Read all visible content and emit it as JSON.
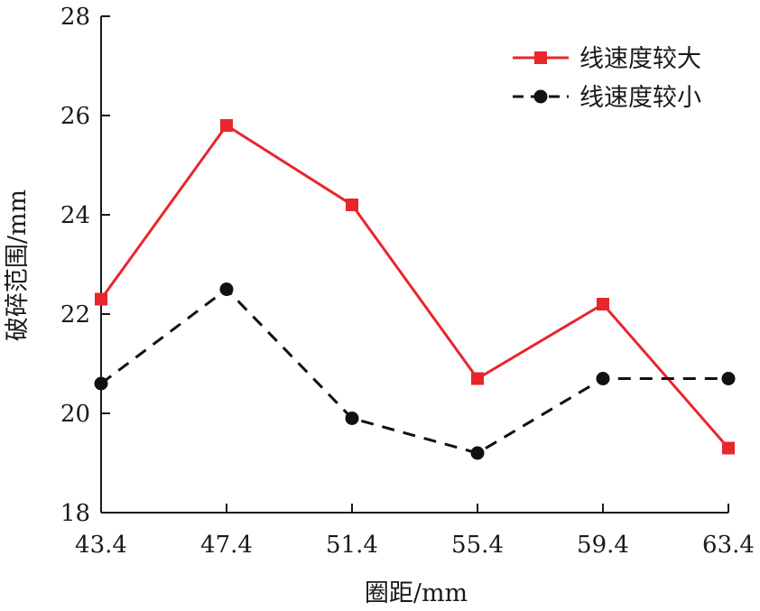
{
  "chart_data": {
    "type": "line",
    "title": "",
    "xlabel": "圈距/mm",
    "ylabel": "破碎范围/mm",
    "x": [
      43.4,
      47.4,
      51.4,
      55.4,
      59.4,
      63.4
    ],
    "x_tick_labels": [
      "43.4",
      "47.4",
      "51.4",
      "55.4",
      "59.4",
      "63.4"
    ],
    "y_ticks": [
      18,
      20,
      22,
      24,
      26,
      28
    ],
    "y_tick_labels": [
      "18",
      "20",
      "22",
      "24",
      "26",
      "28"
    ],
    "xlim": [
      43.4,
      63.4
    ],
    "ylim": [
      18,
      28
    ],
    "grid": false,
    "legend_position": "top-right",
    "series": [
      {
        "name": "线速度较大",
        "values": [
          22.3,
          25.8,
          24.2,
          20.7,
          22.2,
          19.3
        ],
        "color": "#e8262b",
        "line_style": "solid",
        "marker": "square"
      },
      {
        "name": "线速度较小",
        "values": [
          20.6,
          22.5,
          19.9,
          19.2,
          20.7,
          20.7
        ],
        "color": "#111111",
        "line_style": "dashed",
        "marker": "circle"
      }
    ]
  }
}
